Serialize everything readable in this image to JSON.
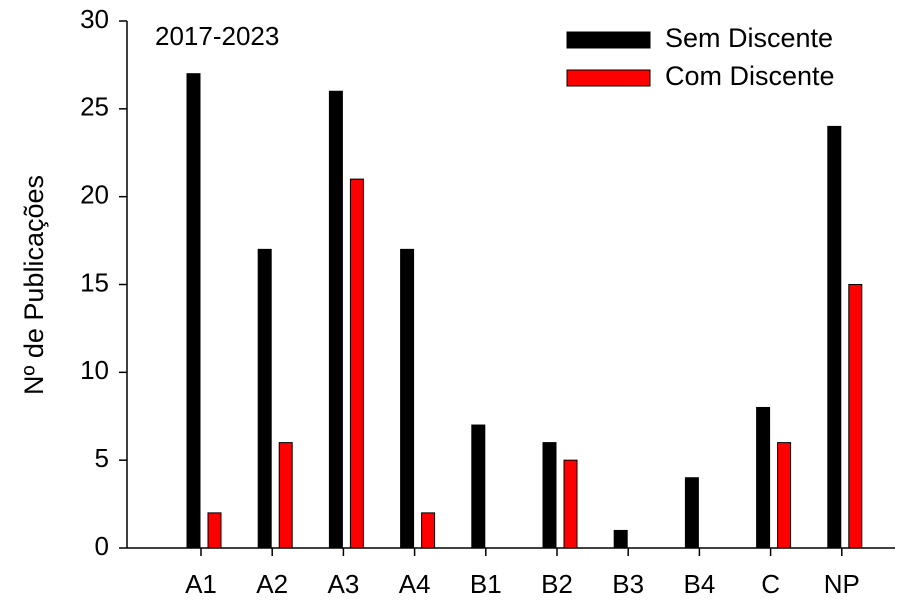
{
  "chart_data": {
    "type": "bar",
    "annotation": "2017-2023",
    "ylabel": "Nº de Publicações",
    "categories": [
      "A1",
      "A2",
      "A3",
      "A4",
      "B1",
      "B2",
      "B3",
      "B4",
      "C",
      "NP"
    ],
    "series": [
      {
        "name": "Sem Discente",
        "color": "#000000",
        "values": [
          27,
          17,
          26,
          17,
          7,
          6,
          1,
          4,
          8,
          24
        ]
      },
      {
        "name": "Com Discente",
        "color": "#ff0000",
        "values": [
          2,
          6,
          21,
          2,
          0,
          5,
          0,
          0,
          6,
          15
        ]
      }
    ],
    "ylim": [
      0,
      30
    ],
    "yticks": [
      0,
      5,
      10,
      15,
      20,
      25,
      30
    ],
    "legend": "upper right"
  }
}
